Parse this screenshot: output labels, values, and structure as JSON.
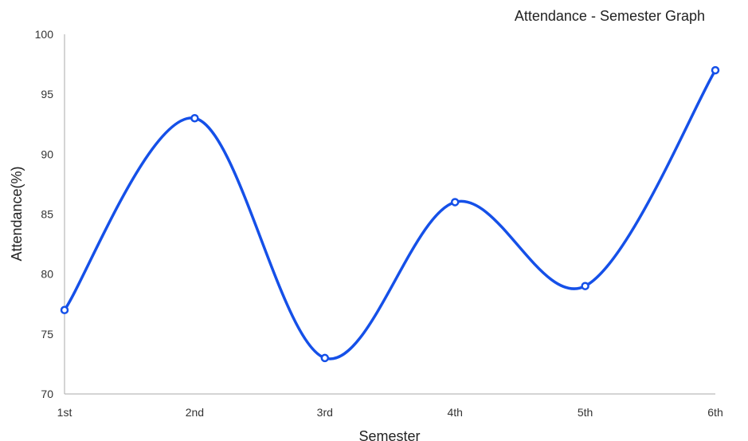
{
  "chart_data": {
    "type": "line",
    "title": "Attendance - Semester Graph",
    "xlabel": "Semester",
    "ylabel": "Attendance(%)",
    "categories": [
      "1st",
      "2nd",
      "3rd",
      "4th",
      "5th",
      "6th"
    ],
    "series": [
      {
        "values": [
          77,
          93,
          73,
          86,
          79,
          97
        ]
      }
    ],
    "ylim": [
      70,
      100
    ],
    "yticks": [
      70,
      75,
      80,
      85,
      90,
      95,
      100
    ],
    "grid": false,
    "smooth": true,
    "colors": {
      "line": "#1550e8",
      "axis": "#aaaaaa"
    }
  }
}
